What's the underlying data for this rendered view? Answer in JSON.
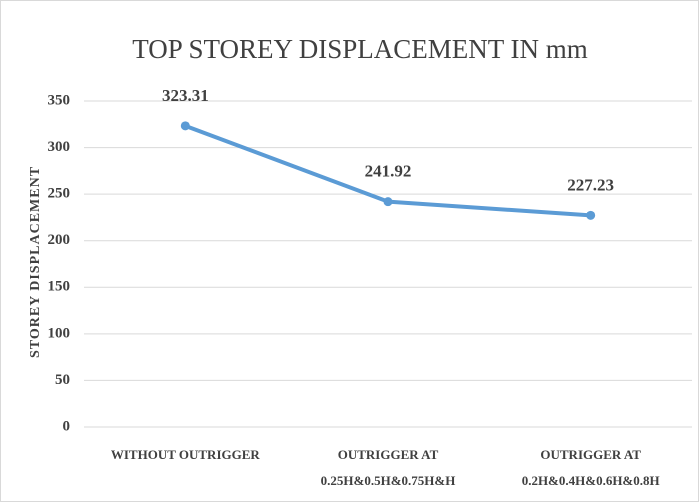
{
  "chart_data": {
    "type": "line",
    "title": "TOP STOREY DISPLACEMENT IN mm",
    "y_label": "STOREY DISPLACEMENT",
    "categories": [
      [
        "WITHOUT OUTRIGGER"
      ],
      [
        "OUTRIGGER AT",
        "0.25H&0.5H&0.75H&H"
      ],
      [
        "OUTRIGGER AT",
        "0.2H&0.4H&0.6H&0.8H"
      ]
    ],
    "values": [
      323.31,
      241.92,
      227.23
    ],
    "color": "#5b9bd5",
    "ylim": [
      0,
      350
    ],
    "yticks": [
      0,
      50,
      100,
      150,
      200,
      250,
      300,
      350
    ],
    "grid": true
  }
}
